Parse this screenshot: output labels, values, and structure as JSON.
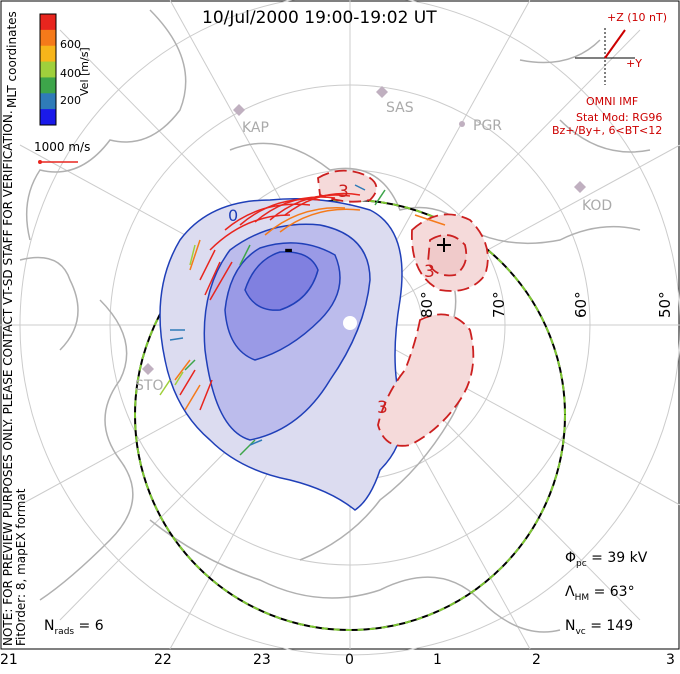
{
  "title": "10/Jul/2000 19:00-19:02 UT",
  "colorbar": {
    "label": "Vel [m/s]",
    "ticks": [
      "600",
      "400",
      "200"
    ],
    "colors": [
      "#e8251e",
      "#f57a1a",
      "#f7b51a",
      "#9fd03c",
      "#3da54a",
      "#2f7bb8",
      "#1a1aea"
    ]
  },
  "coords_label": "MLT coordinates",
  "note_line1": "NOTE: FOR PREVIEW PURPOSES ONLY. PLEASE CONTACT VT-SD STAFF FOR VERIFICATION.",
  "note_line2": "FitOrder: 8, mapEX format",
  "scale_label": "1000 m/s",
  "imf": {
    "z_label": "+Z (10 nT)",
    "y_label": "+Y",
    "source": "OMNI IMF",
    "stat_mod": "Stat Mod: RG96",
    "condition": "Bz+/By+, 6<BT<12"
  },
  "stations": [
    "KAP",
    "SAS",
    "PGR",
    "KOD",
    "STO"
  ],
  "lat_labels": [
    "80°",
    "70°",
    "60°",
    "50°"
  ],
  "contour_labels": {
    "neg": "-",
    "pos": "+",
    "three_a": "3",
    "three_b": "3",
    "three_c": "3",
    "zero": "0"
  },
  "stats": {
    "phi_sym": "Φ",
    "phi_sub": "pc",
    "phi_val": " = 39 kV",
    "lam_sym": "Λ",
    "lam_sub": "HM",
    "lam_val": " = 63°",
    "nvc_sym": "N",
    "nvc_sub": "vc",
    "nvc_val": " = 149",
    "nrads_sym": "N",
    "nrads_sub": "rads",
    "nrads_val": " = 6"
  },
  "mlt_labels": [
    "21",
    "22",
    "23",
    "0",
    "1",
    "2",
    "3"
  ]
}
